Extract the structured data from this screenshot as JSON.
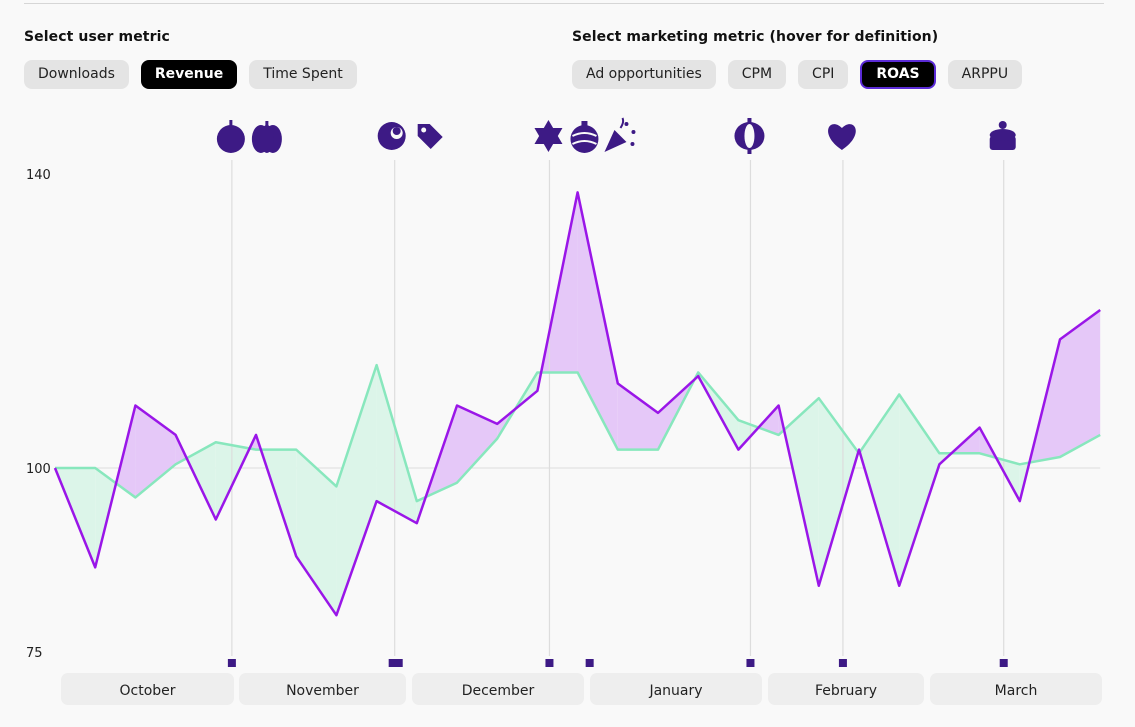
{
  "user_metric": {
    "title": "Select user metric",
    "options": [
      "Downloads",
      "Revenue",
      "Time Spent"
    ],
    "selected": "Revenue"
  },
  "marketing_metric": {
    "title": "Select marketing metric (hover for definition)",
    "options": [
      "Ad opportunities",
      "CPM",
      "CPI",
      "ROAS",
      "ARPPU"
    ],
    "selected": "ROAS"
  },
  "colors": {
    "purple": "#9a16e8",
    "purple_fill": "#e5c8f8",
    "green": "#88e7bd",
    "green_fill": "#dcf5e9",
    "marker": "#3d1a85",
    "gridline": "#dddddd"
  },
  "events": [
    {
      "icons": [
        "apple-icon",
        "pumpkin-icon"
      ],
      "index": 4.4
    },
    {
      "icons": [
        "turkey-icon",
        "price-tag-icon"
      ],
      "index": 8.45
    },
    {
      "icons": [
        "star-of-david-icon",
        "ornament-icon",
        "party-popper-icon"
      ],
      "index": 12.3
    },
    {
      "icons": [
        "lantern-icon"
      ],
      "index": 17.3
    },
    {
      "icons": [
        "heart-icon"
      ],
      "index": 19.6
    },
    {
      "icons": [
        "cake-icon"
      ],
      "index": 23.6
    }
  ],
  "markers": [
    4.4,
    8.4,
    8.55,
    12.3,
    13.3,
    17.3,
    19.6,
    23.6
  ],
  "chart_data": {
    "type": "line",
    "x_index": [
      0,
      1,
      2,
      3,
      4,
      5,
      6,
      7,
      8,
      9,
      10,
      11,
      12,
      13,
      14,
      15,
      16,
      17,
      18,
      19,
      20,
      21,
      22,
      23,
      24,
      25,
      26
    ],
    "series": [
      {
        "name": "Revenue",
        "values": [
          100,
          86.5,
          108.5,
          104.5,
          93,
          104.5,
          88,
          80,
          95.5,
          92.5,
          108.5,
          106,
          110.5,
          137.5,
          111.5,
          107.5,
          112.5,
          102.5,
          108.5,
          84,
          102.5,
          84,
          100.5,
          105.5,
          95.5,
          117.5,
          121.5
        ]
      },
      {
        "name": "ROAS",
        "values": [
          100,
          100,
          96,
          100.5,
          103.5,
          102.5,
          102.5,
          97.5,
          114,
          95.5,
          98,
          104,
          113,
          113,
          102.5,
          102.5,
          113,
          106.5,
          104.5,
          109.5,
          102,
          110,
          102,
          102,
          100.5,
          101.5,
          104.5
        ]
      }
    ],
    "y_ticks": [
      75,
      100,
      140
    ],
    "ylim": [
      75,
      140
    ],
    "months": [
      "October",
      "November",
      "December",
      "January",
      "February",
      "March"
    ]
  }
}
